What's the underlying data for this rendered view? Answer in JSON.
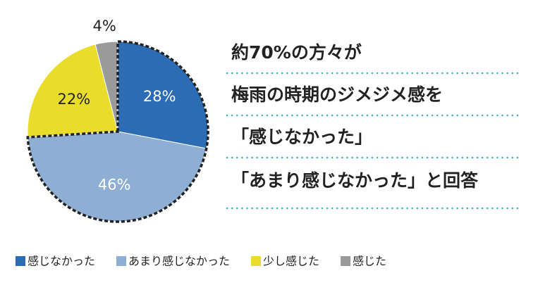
{
  "chart_data": {
    "type": "pie",
    "categories": [
      "感じなかった",
      "あまり感じなかった",
      "少し感じた",
      "感じた"
    ],
    "values": [
      28,
      46,
      22,
      4
    ],
    "value_labels": [
      "28%",
      "46%",
      "22%",
      "4%"
    ],
    "colors": [
      "#2b6cb4",
      "#8eafd3",
      "#e9dc2b",
      "#9a9a9a"
    ],
    "annotations": [
      "約70%の方々が",
      "梅雨の時期のジメジメ感を",
      "「感じなかった」",
      "「あまり感じなかった」と回答"
    ]
  }
}
